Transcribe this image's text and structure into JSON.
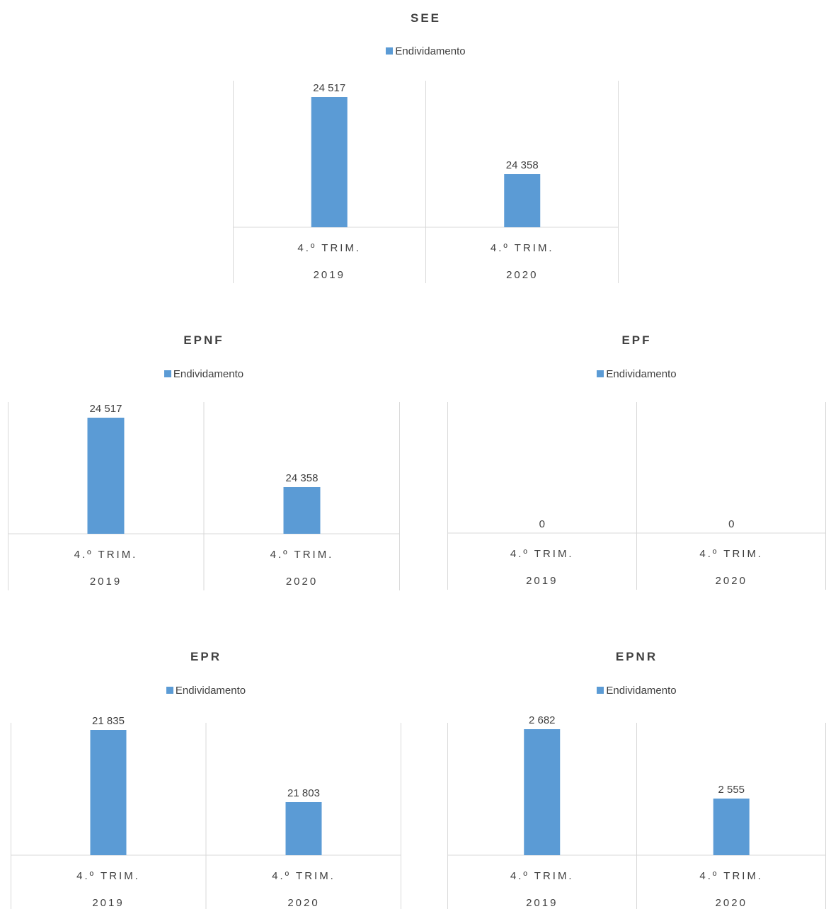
{
  "chart_data": [
    {
      "type": "bar",
      "title": "SEE",
      "categories": [
        [
          "4.º TRIM.",
          "2019"
        ],
        [
          "4.º TRIM.",
          "2020"
        ]
      ],
      "series": [
        {
          "name": "Endividamento",
          "values": [
            24517,
            24358
          ],
          "labels": [
            "24 517",
            "24 358"
          ]
        }
      ],
      "ylim": [
        24300,
        24550
      ],
      "grid": false,
      "legend": "top",
      "color": "#5b9bd5"
    },
    {
      "type": "bar",
      "title": "EPNF",
      "categories": [
        [
          "4.º TRIM.",
          "2019"
        ],
        [
          "4.º TRIM.",
          "2020"
        ]
      ],
      "series": [
        {
          "name": "Endividamento",
          "values": [
            24517,
            24358
          ],
          "labels": [
            "24 517",
            "24 358"
          ]
        }
      ],
      "ylim": [
        24300,
        24550
      ],
      "grid": false,
      "legend": "top",
      "color": "#5b9bd5"
    },
    {
      "type": "bar",
      "title": "EPF",
      "categories": [
        [
          "4.º TRIM.",
          "2019"
        ],
        [
          "4.º TRIM.",
          "2020"
        ]
      ],
      "series": [
        {
          "name": "Endividamento",
          "values": [
            0,
            0
          ],
          "labels": [
            "0",
            "0"
          ]
        }
      ],
      "ylim": [
        0,
        1
      ],
      "grid": false,
      "legend": "top",
      "color": "#5b9bd5"
    },
    {
      "type": "bar",
      "title": "EPR",
      "categories": [
        [
          "4.º TRIM.",
          "2019"
        ],
        [
          "4.º TRIM.",
          "2020"
        ]
      ],
      "series": [
        {
          "name": "Endividamento",
          "values": [
            21835,
            21803
          ],
          "labels": [
            "21 835",
            "21 803"
          ]
        }
      ],
      "ylim": [
        21780,
        21840
      ],
      "grid": false,
      "legend": "top",
      "color": "#5b9bd5"
    },
    {
      "type": "bar",
      "title": "EPNR",
      "categories": [
        [
          "4.º TRIM.",
          "2019"
        ],
        [
          "4.º TRIM.",
          "2020"
        ]
      ],
      "series": [
        {
          "name": "Endividamento",
          "values": [
            2682,
            2555
          ],
          "labels": [
            "2 682",
            "2 555"
          ]
        }
      ],
      "ylim": [
        2500,
        2700
      ],
      "grid": false,
      "legend": "top",
      "color": "#5b9bd5"
    }
  ]
}
